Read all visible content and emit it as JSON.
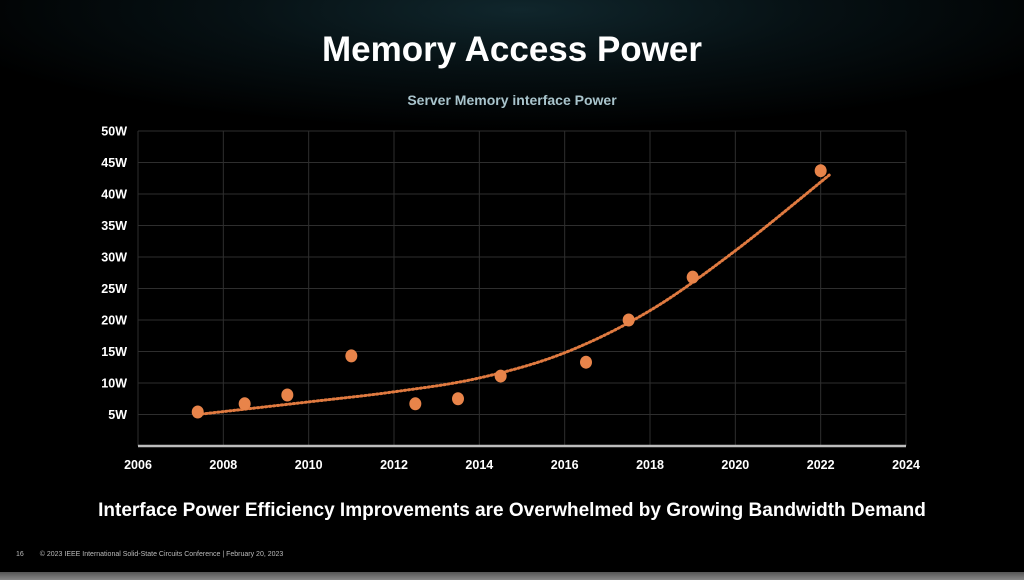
{
  "slide": {
    "title": "Memory Access Power",
    "message": "Interface Power Efficiency Improvements are Overwhelmed by Growing Bandwidth Demand",
    "page_number": "16",
    "footer": "© 2023 IEEE International Solid-State Circuits Conference  |  February 20, 2023"
  },
  "chart_data": {
    "type": "scatter",
    "title": "Server Memory interface Power",
    "xlim": [
      2006,
      2024
    ],
    "ylim": [
      0,
      50
    ],
    "x_ticks": [
      "2006",
      "2008",
      "2010",
      "2012",
      "2014",
      "2016",
      "2018",
      "2020",
      "2022",
      "2024"
    ],
    "y_ticks": [
      "5W",
      "10W",
      "15W",
      "20W",
      "25W",
      "30W",
      "35W",
      "40W",
      "45W",
      "50W"
    ],
    "grid": true,
    "points": [
      {
        "x": 2007.4,
        "y": 5.4
      },
      {
        "x": 2008.5,
        "y": 6.7
      },
      {
        "x": 2009.5,
        "y": 8.1
      },
      {
        "x": 2011.0,
        "y": 14.3
      },
      {
        "x": 2012.5,
        "y": 6.7
      },
      {
        "x": 2013.5,
        "y": 7.5
      },
      {
        "x": 2014.5,
        "y": 11.1
      },
      {
        "x": 2016.5,
        "y": 13.3
      },
      {
        "x": 2017.5,
        "y": 20.0
      },
      {
        "x": 2019.0,
        "y": 26.8
      },
      {
        "x": 2022.0,
        "y": 43.7
      }
    ],
    "trendline": {
      "style": "dotted",
      "kind": "exponential",
      "x": [
        2007.4,
        2010,
        2012,
        2014,
        2016,
        2018,
        2020,
        2022.2
      ],
      "y": [
        5.0,
        7.0,
        8.6,
        10.8,
        14.8,
        21.5,
        31.0,
        43.0
      ]
    },
    "colors": {
      "points": "#e8844a",
      "trendline": "#e07a40",
      "grid": "#2e2e2e",
      "axis": "#bdbdbd"
    }
  }
}
